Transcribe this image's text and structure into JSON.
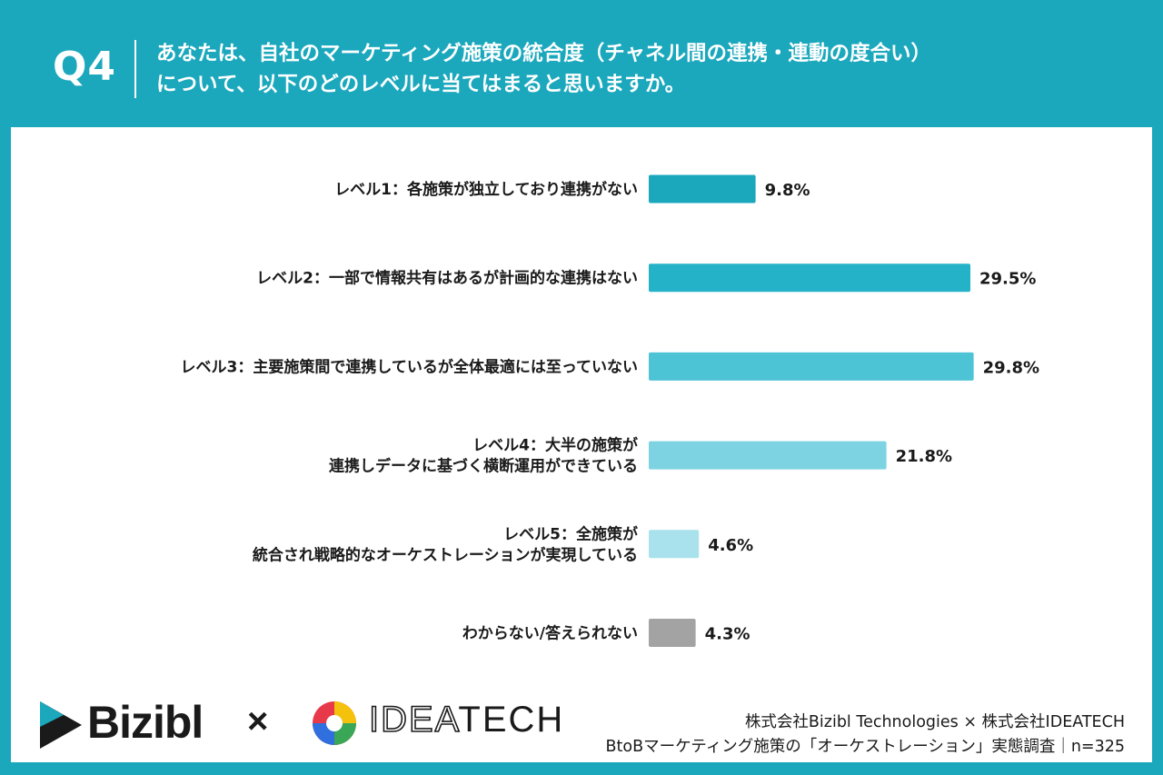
{
  "header": {
    "q_number": "Q4",
    "question_line1": "あなたは、自社のマーケティング施策の統合度（チャネル間の連携・連動の度合い）",
    "question_line2": "について、以下のどのレベルに当てはまると思いますか。"
  },
  "chart_data": {
    "type": "bar",
    "orientation": "horizontal",
    "categories": [
      [
        "レベル1：各施策が独立しており連携がない"
      ],
      [
        "レベル2：一部で情報共有はあるが計画的な連携はない"
      ],
      [
        "レベル3：主要施策間で連携しているが全体最適には至っていない"
      ],
      [
        "レベル4：大半の施策が",
        "連携しデータに基づく横断運用ができている"
      ],
      [
        "レベル5：全施策が",
        "統合され戦略的なオーケストレーションが実現している"
      ],
      [
        "わからない/答えられない"
      ]
    ],
    "values": [
      9.8,
      29.5,
      29.8,
      21.8,
      4.6,
      4.3
    ],
    "value_labels": [
      "9.8%",
      "29.5%",
      "29.8%",
      "21.8%",
      "4.6%",
      "4.3%"
    ],
    "bar_colors": [
      "#1ba8bd",
      "#24b2c8",
      "#4dc3d6",
      "#7ed3e2",
      "#a9e2ec",
      "#a3a3a3"
    ],
    "unit": "%",
    "grid": false
  },
  "logos": {
    "bizibl": "Bizibl",
    "times": "×",
    "ideatech_light": "IDEA",
    "ideatech_bold": "TECH"
  },
  "credit": {
    "line1": "株式会社Bizibl Technologies × 株式会社IDEATECH",
    "line2": "BtoBマーケティング施策の「オーケストレーション」実態調査｜n=325"
  }
}
